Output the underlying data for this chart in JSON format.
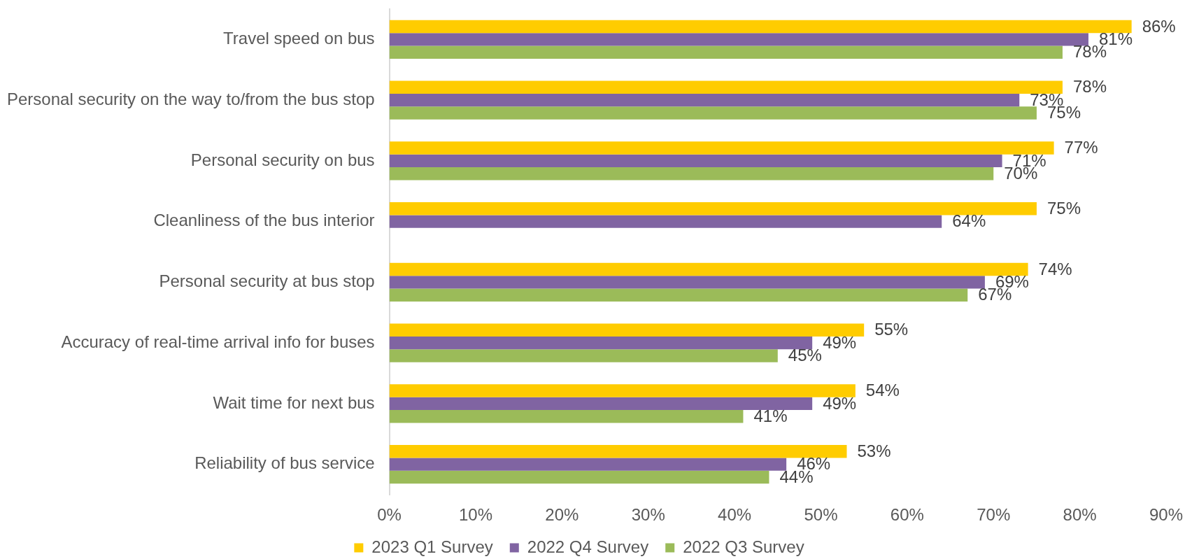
{
  "chart_data": {
    "type": "bar",
    "orientation": "horizontal",
    "categories": [
      "Travel speed on bus",
      "Personal security on the way to/from the bus stop",
      "Personal security on bus",
      "Cleanliness of the bus interior",
      "Personal security at bus stop",
      "Accuracy of real-time arrival info for buses",
      "Wait time for next bus",
      "Reliability of bus service"
    ],
    "series": [
      {
        "name": "2023 Q1 Survey",
        "color": "#ffcc00",
        "values": [
          86,
          78,
          77,
          75,
          74,
          55,
          54,
          53
        ],
        "value_labels": [
          "86%",
          "78%",
          "77%",
          "75%",
          "74%",
          "55%",
          "54%",
          "53%"
        ]
      },
      {
        "name": "2022 Q4 Survey",
        "color": "#8064a2",
        "values": [
          81,
          73,
          71,
          64,
          69,
          49,
          49,
          46
        ],
        "value_labels": [
          "81%",
          "73%",
          "71%",
          "64%",
          "69%",
          "49%",
          "49%",
          "46%"
        ]
      },
      {
        "name": "2022 Q3 Survey",
        "color": "#9bbb59",
        "values": [
          78,
          75,
          70,
          null,
          67,
          45,
          41,
          44
        ],
        "value_labels": [
          "78%",
          "75%",
          "70%",
          null,
          "67%",
          "45%",
          "41%",
          "44%"
        ]
      }
    ],
    "xlim": [
      0,
      90
    ],
    "xticks": [
      {
        "value": 0,
        "label": "0%"
      },
      {
        "value": 10,
        "label": "10%"
      },
      {
        "value": 20,
        "label": "20%"
      },
      {
        "value": 30,
        "label": "30%"
      },
      {
        "value": 40,
        "label": "40%"
      },
      {
        "value": 50,
        "label": "50%"
      },
      {
        "value": 60,
        "label": "60%"
      },
      {
        "value": 70,
        "label": "70%"
      },
      {
        "value": 80,
        "label": "80%"
      },
      {
        "value": 90,
        "label": "90%"
      }
    ],
    "grid": false,
    "legend": "bottom"
  }
}
